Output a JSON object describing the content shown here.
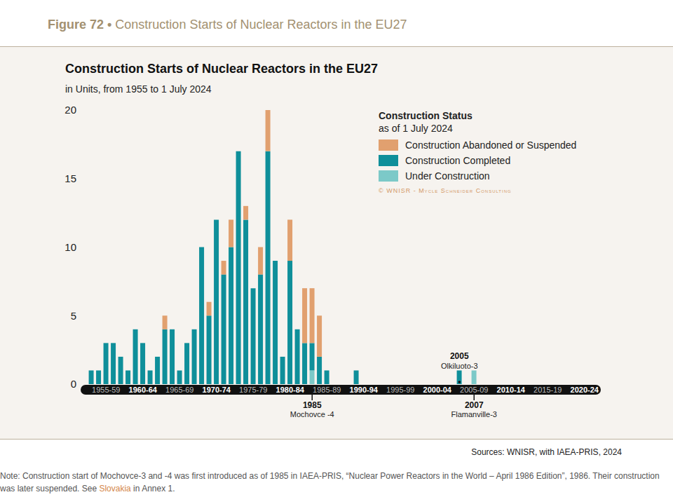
{
  "chart_data": {
    "type": "bar",
    "stacked": true,
    "figure_label": "Figure 72 •",
    "figure_title": "Construction Starts of Nuclear Reactors in the EU27",
    "title": "Construction Starts of Nuclear Reactors in the EU27",
    "subtitle": "in Units, from 1955 to 1 July 2024",
    "legend": "upper right",
    "legend_title": "Construction Status",
    "legend_subtitle": "as of 1 July 2024",
    "credit": "© WNISR - Mycle Schneider Consulting",
    "source": "Sources: WNISR, with IAEA-PRIS, 2024",
    "note": {
      "before": "Note: Construction start of Mochovce-3 and -4 was first introduced as of 1985 in IAEA-PRIS, “Nuclear Power Reactors in the World – April 1986 Edition”, 1986. Their construction was later suspended. See ",
      "link": "Slovakia",
      "after": " in Annex 1."
    },
    "categories": [
      "1955-59",
      null,
      null,
      null,
      null,
      "1960-64",
      null,
      null,
      null,
      null,
      "1965-69",
      null,
      null,
      null,
      null,
      "1970-74",
      null,
      null,
      null,
      null,
      "1975-79",
      null,
      null,
      null,
      null,
      "1980-84",
      null,
      null,
      null,
      null,
      "1985-89",
      null,
      null,
      null,
      null,
      "1990-94",
      null,
      null,
      null,
      null,
      "1995-99",
      null,
      null,
      null,
      null,
      "2000-04",
      null,
      null,
      null,
      null,
      "2005-09",
      null,
      null,
      null,
      null,
      "2010-14",
      null,
      null,
      null,
      null,
      "2015-19",
      null,
      null,
      null,
      null,
      "2020-24",
      null,
      null,
      null,
      null
    ],
    "series": [
      {
        "name": "Construction Abandoned or Suspended",
        "color": "#e1a06f",
        "values": [
          0,
          0,
          0,
          0,
          0,
          0,
          0,
          0,
          0,
          0,
          1,
          0,
          0,
          0,
          0,
          0,
          1,
          0,
          1,
          2,
          0,
          1,
          0,
          2,
          3,
          0,
          0,
          3,
          0,
          4,
          4,
          3,
          0,
          0,
          0,
          0,
          0,
          0,
          0,
          0,
          0,
          0,
          0,
          0,
          0,
          0,
          0,
          0,
          0,
          0,
          0,
          0,
          0,
          0,
          0,
          0,
          0,
          0,
          0,
          0,
          0,
          0,
          0,
          0,
          0,
          0,
          0,
          0,
          0,
          0
        ]
      },
      {
        "name": "Construction Completed",
        "color": "#0f8f9a",
        "values": [
          1,
          1,
          3,
          3,
          2,
          1,
          4,
          3,
          1,
          2,
          4,
          4,
          1,
          3,
          4,
          10,
          5,
          12,
          8,
          10,
          17,
          12,
          7,
          8,
          17,
          9,
          2,
          9,
          4,
          3,
          2,
          2,
          1,
          0,
          0,
          0,
          1,
          0,
          0,
          0,
          0,
          0,
          0,
          0,
          0,
          0,
          0,
          0,
          0,
          0,
          1,
          0,
          0,
          0,
          0,
          0,
          0,
          0,
          0,
          0,
          0,
          0,
          0,
          0,
          0,
          0,
          0,
          0,
          0,
          0
        ]
      },
      {
        "name": "Under Construction",
        "color": "#7cc9c8",
        "values": [
          0,
          0,
          0,
          0,
          0,
          0,
          0,
          0,
          0,
          0,
          0,
          0,
          0,
          0,
          0,
          0,
          0,
          0,
          0,
          0,
          0,
          0,
          0,
          0,
          0,
          0,
          0,
          0,
          0,
          0,
          1,
          0,
          0,
          0,
          0,
          0,
          0,
          0,
          0,
          0,
          0,
          0,
          0,
          0,
          0,
          0,
          0,
          0,
          0,
          0,
          0,
          0,
          1,
          0,
          0,
          0,
          0,
          0,
          0,
          0,
          0,
          0,
          0,
          0,
          0,
          0,
          0,
          0,
          0,
          0
        ]
      }
    ],
    "ylim": [
      0,
      20
    ],
    "yticks": [
      0,
      5,
      10,
      15,
      20
    ],
    "grid": false,
    "annotations_above": [
      {
        "year": 2005,
        "label": "Olkiluoto-3"
      }
    ],
    "annotations_below": [
      {
        "year": 1985,
        "label": "Mochovce -4"
      },
      {
        "year": 2007,
        "label": "Flamanville-3"
      }
    ]
  }
}
